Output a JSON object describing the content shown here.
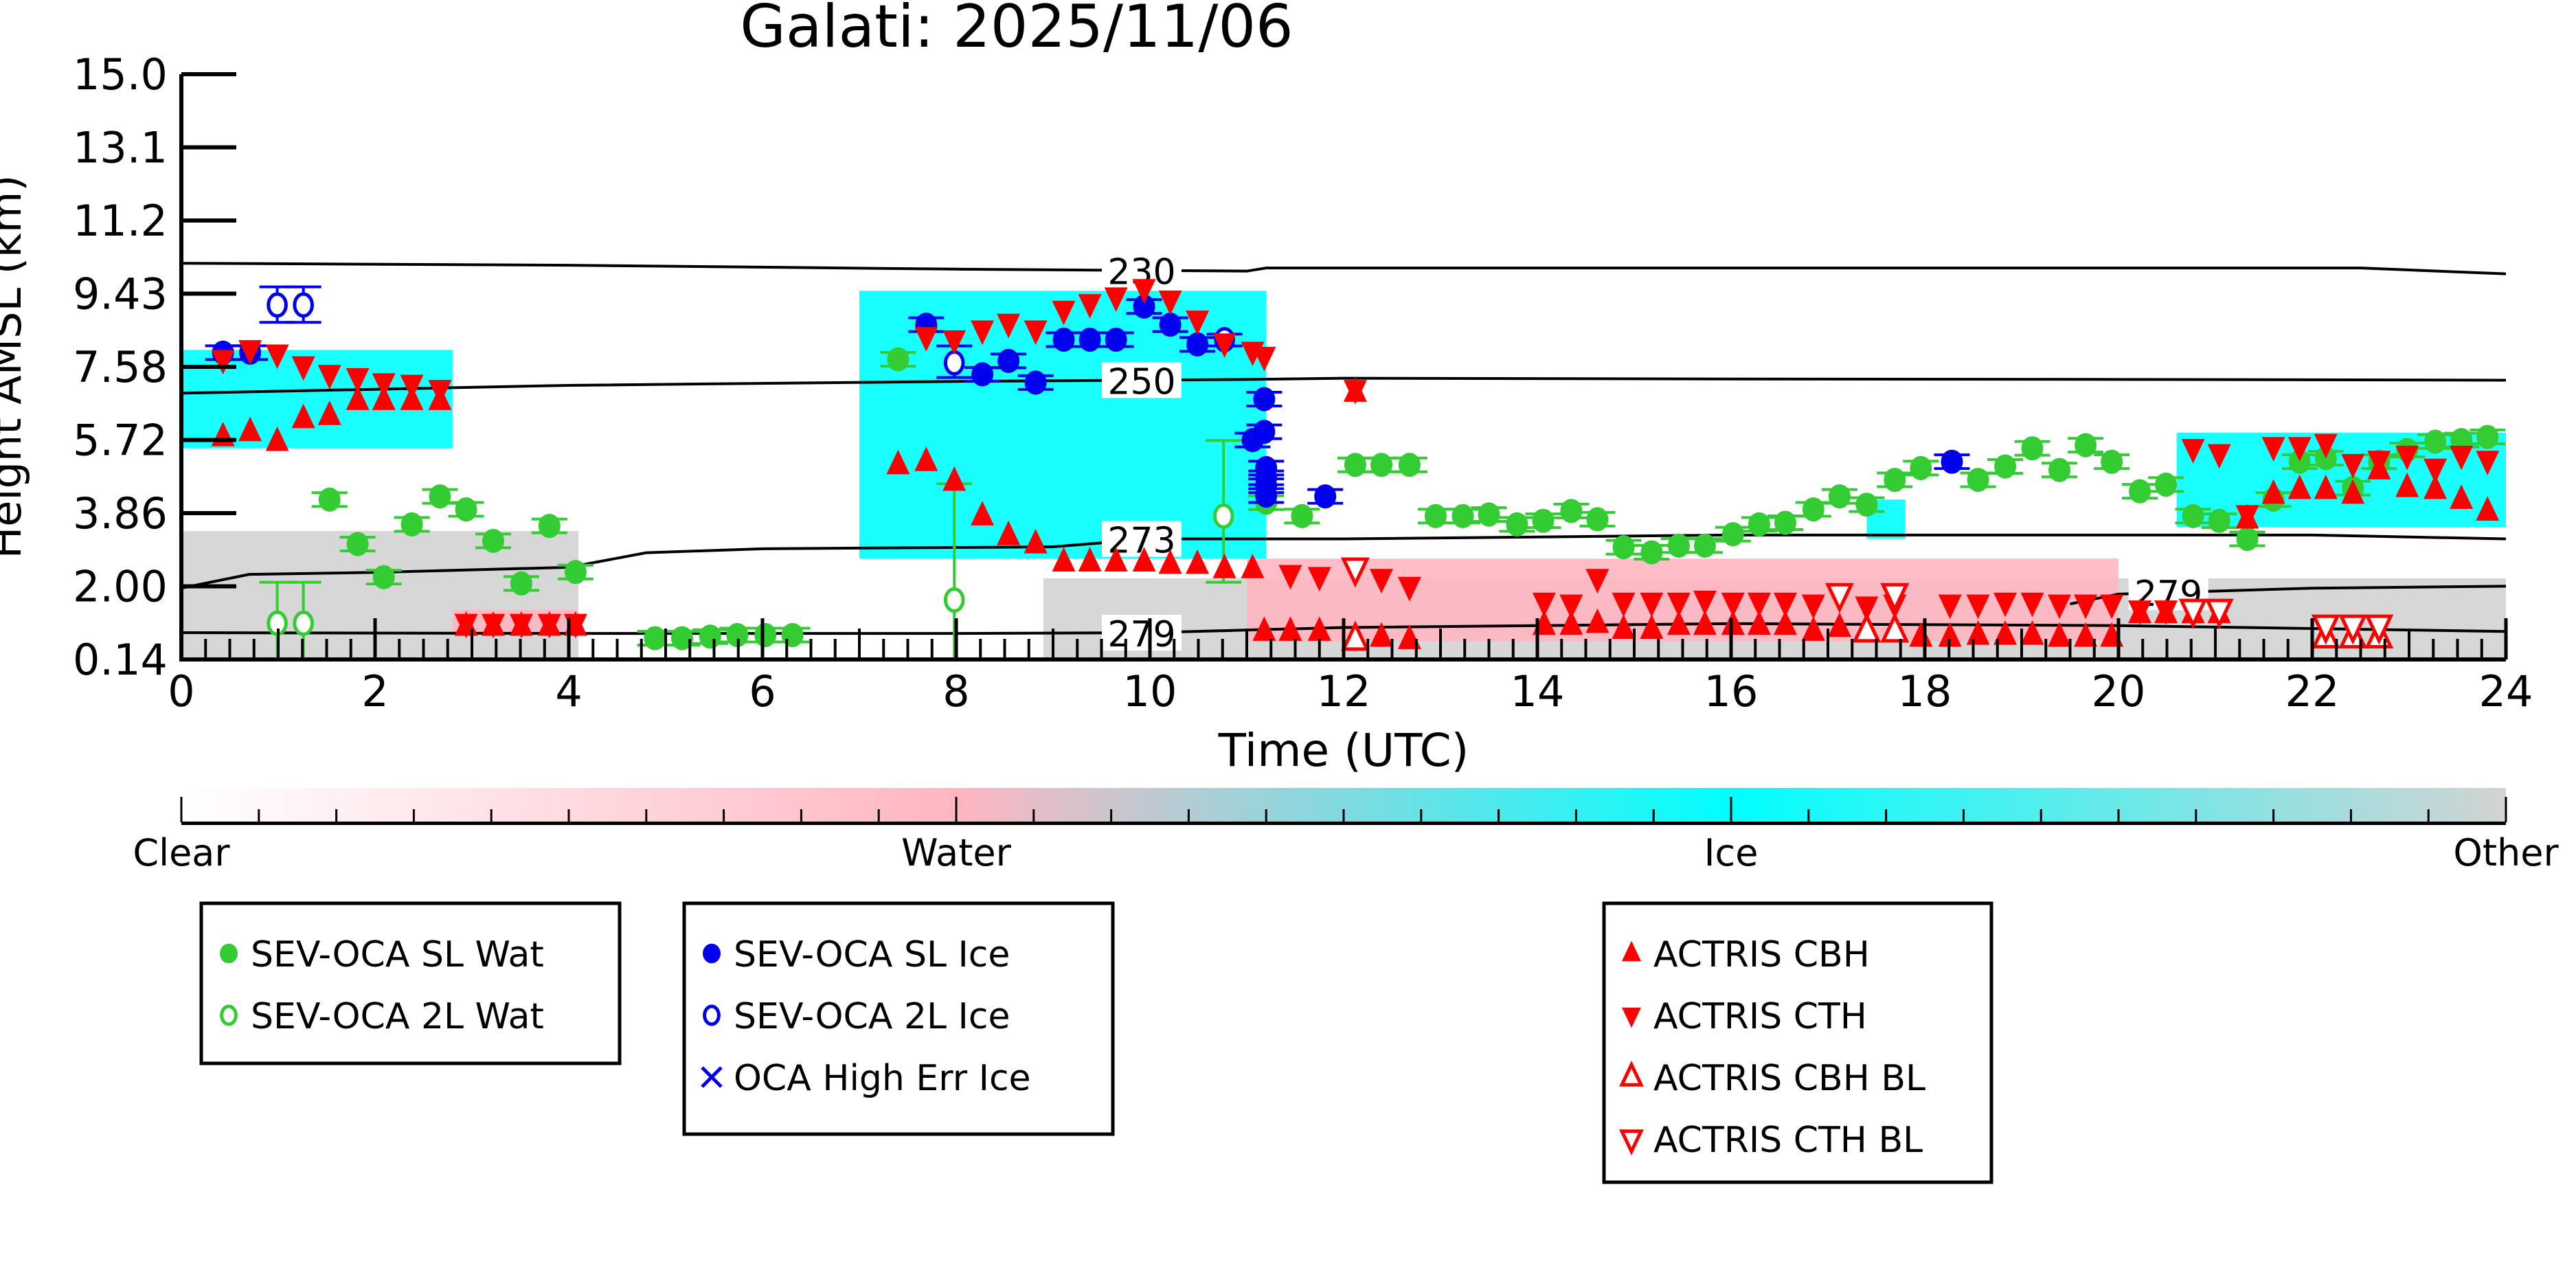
{
  "chart_data": {
    "type": "scatter",
    "title": "Galati: 2025/11/06",
    "xlabel": "Time (UTC)",
    "ylabel": "Height AMSL (km)",
    "xlim": [
      0,
      24
    ],
    "ylim": [
      0.14,
      15.0
    ],
    "xticks": [
      "0",
      "2",
      "4",
      "6",
      "8",
      "10",
      "12",
      "14",
      "16",
      "18",
      "20",
      "22",
      "24"
    ],
    "yticks": [
      "0.14",
      "2.00",
      "3.86",
      "5.72",
      "7.58",
      "9.43",
      "11.2",
      "13.1",
      "15.0"
    ],
    "colorbar": {
      "labels": [
        "Clear",
        "Water",
        "Ice",
        "Other"
      ],
      "colors": [
        "#ffffff",
        "#ffb6c1",
        "#00ffff",
        "#d3d3d3"
      ]
    },
    "background_regions": [
      {
        "class": "Ice",
        "t": [
          0,
          2.8
        ],
        "h": [
          5.5,
          8.0
        ]
      },
      {
        "class": "Ice",
        "t": [
          7.0,
          11.2
        ],
        "h": [
          2.7,
          9.5
        ]
      },
      {
        "class": "Ice",
        "t": [
          20.6,
          24
        ],
        "h": [
          3.5,
          5.9
        ]
      },
      {
        "class": "Ice",
        "t": [
          17.4,
          17.8
        ],
        "h": [
          3.2,
          4.2
        ]
      },
      {
        "class": "Water",
        "t": [
          11.0,
          20
        ],
        "h": [
          0.6,
          2.7
        ]
      },
      {
        "class": "Water",
        "t": [
          2.8,
          4.1
        ],
        "h": [
          0.8,
          1.4
        ]
      },
      {
        "class": "Other",
        "t": [
          0,
          4.1
        ],
        "h": [
          0.14,
          3.4
        ]
      },
      {
        "class": "Other",
        "t": [
          8.9,
          24
        ],
        "h": [
          0.14,
          2.2
        ]
      }
    ],
    "contours": [
      {
        "label": "230",
        "t": [
          0,
          4,
          8,
          11,
          11.2,
          16,
          20,
          22.5,
          24
        ],
        "h": [
          10.2,
          10.15,
          10.05,
          10.0,
          10.08,
          10.08,
          10.08,
          10.08,
          9.93
        ]
      },
      {
        "label": "250",
        "t": [
          0,
          4,
          8,
          11,
          12,
          16,
          20,
          24
        ],
        "h": [
          6.9,
          7.1,
          7.2,
          7.25,
          7.28,
          7.26,
          7.25,
          7.23
        ]
      },
      {
        "label": "273",
        "t": [
          0,
          0.7,
          2,
          4,
          4.8,
          6,
          9,
          10,
          12,
          16,
          20,
          22,
          24
        ],
        "h": [
          1.95,
          2.3,
          2.35,
          2.48,
          2.85,
          2.95,
          3.0,
          3.2,
          3.2,
          3.3,
          3.3,
          3.3,
          3.2
        ]
      },
      {
        "label": "279",
        "t": [
          0,
          4,
          8,
          10,
          11.2,
          12,
          16,
          20,
          24
        ],
        "h": [
          0.82,
          0.8,
          0.8,
          0.82,
          0.9,
          0.95,
          1.05,
          1.0,
          0.85
        ]
      },
      {
        "label": "279",
        "t": [
          19.5,
          20,
          22,
          24
        ],
        "h": [
          1.55,
          1.8,
          1.95,
          2.0
        ]
      }
    ],
    "series": [
      {
        "name": "SEV-OCA SL Wat",
        "marker": "filled-circle",
        "color": "#33cc33",
        "t": [
          1.53,
          1.82,
          2.09,
          2.38,
          2.67,
          2.94,
          3.22,
          3.51,
          3.8,
          4.07,
          4.89,
          5.17,
          5.46,
          5.74,
          6.03,
          6.31,
          7.4,
          11.2,
          11.57,
          12.12,
          12.39,
          12.68,
          12.95,
          13.23,
          13.5,
          13.79,
          14.06,
          14.35,
          14.62,
          14.89,
          15.18,
          15.46,
          15.73,
          16.02,
          16.29,
          16.56,
          16.85,
          17.12,
          17.4,
          17.69,
          17.96,
          18.55,
          18.83,
          19.11,
          19.39,
          19.66,
          19.93,
          20.22,
          20.49,
          20.77,
          21.04,
          21.33,
          21.6,
          21.87,
          22.14,
          22.42,
          22.69,
          22.98,
          23.27,
          23.54,
          23.81
        ],
        "h": [
          4.2,
          3.07,
          2.23,
          3.57,
          4.28,
          3.95,
          3.15,
          2.07,
          3.53,
          2.36,
          0.68,
          0.68,
          0.72,
          0.76,
          0.76,
          0.76,
          7.76,
          4.12,
          3.78,
          5.08,
          5.08,
          5.08,
          3.78,
          3.78,
          3.82,
          3.57,
          3.66,
          3.91,
          3.7,
          2.99,
          2.86,
          3.03,
          3.03,
          3.32,
          3.57,
          3.61,
          3.95,
          4.28,
          4.07,
          4.7,
          5.0,
          4.7,
          5.04,
          5.5,
          4.95,
          5.58,
          5.16,
          4.41,
          4.58,
          3.78,
          3.66,
          3.2,
          4.2,
          5.16,
          5.25,
          4.49,
          5.16,
          5.46,
          5.67,
          5.71,
          5.79
        ]
      },
      {
        "name": "SEV-OCA 2L Wat",
        "marker": "open-circle",
        "color": "#33cc33",
        "t": [
          0.99,
          1.26,
          7.98,
          10.76
        ],
        "h": [
          1.06,
          1.06,
          1.65,
          3.78
        ],
        "err_low": [
          0.14,
          0.14,
          0.14,
          2.1
        ],
        "err_high": [
          2.1,
          2.1,
          4.6,
          5.7
        ]
      },
      {
        "name": "SEV-OCA SL Ice",
        "marker": "filled-circle",
        "color": "#0000ee",
        "t": [
          0.43,
          0.71,
          7.69,
          8.27,
          8.54,
          8.82,
          9.11,
          9.38,
          9.65,
          9.94,
          10.21,
          10.49,
          11.18,
          11.18,
          11.06,
          11.2,
          11.2,
          11.2,
          11.2,
          11.81,
          18.28
        ],
        "h": [
          7.93,
          7.93,
          8.64,
          7.38,
          7.72,
          7.17,
          8.26,
          8.26,
          8.26,
          9.1,
          8.64,
          8.14,
          6.75,
          5.92,
          5.71,
          5.0,
          4.75,
          4.55,
          4.3,
          4.28,
          5.16
        ]
      },
      {
        "name": "SEV-OCA 2L Ice",
        "marker": "open-circle",
        "color": "#0000ee",
        "t": [
          0.99,
          1.26,
          7.98,
          10.77
        ],
        "h": [
          9.14,
          9.14,
          7.67,
          8.26
        ],
        "err_low": [
          8.7,
          8.7,
          7.3,
          8.1
        ],
        "err_high": [
          9.6,
          9.6,
          8.1,
          8.4
        ]
      },
      {
        "name": "OCA High Err Ice",
        "marker": "x",
        "color": "#0000ee",
        "t": [],
        "h": []
      },
      {
        "name": "ACTRIS CBH",
        "marker": "filled-triangle-up",
        "color": "#ff0000",
        "t": [
          0.43,
          0.71,
          0.99,
          1.26,
          1.53,
          1.82,
          2.09,
          2.38,
          2.67,
          2.94,
          3.22,
          3.51,
          3.8,
          4.07,
          7.4,
          7.69,
          7.98,
          8.27,
          8.54,
          8.82,
          9.11,
          9.38,
          9.65,
          9.94,
          10.21,
          10.49,
          10.77,
          11.06,
          11.18,
          11.45,
          11.75,
          12.12,
          12.39,
          12.68,
          14.07,
          14.35,
          14.62,
          14.89,
          15.18,
          15.46,
          15.73,
          16.02,
          16.29,
          16.56,
          16.85,
          17.12,
          17.96,
          18.26,
          18.55,
          18.83,
          19.11,
          19.39,
          19.66,
          19.93,
          20.22,
          20.49,
          20.77,
          21.04,
          21.33,
          21.6,
          21.87,
          22.14,
          22.42,
          22.69,
          22.98,
          23.27,
          23.54,
          23.81
        ],
        "h": [
          5.79,
          5.92,
          5.67,
          6.25,
          6.33,
          6.71,
          6.71,
          6.71,
          6.71,
          0.98,
          0.98,
          0.98,
          0.98,
          0.98,
          5.08,
          5.16,
          4.66,
          3.78,
          3.28,
          3.07,
          2.61,
          2.61,
          2.61,
          2.61,
          2.55,
          2.55,
          2.44,
          2.44,
          0.85,
          0.85,
          0.85,
          6.92,
          0.7,
          0.64,
          1.0,
          1.0,
          1.05,
          0.9,
          0.9,
          1.0,
          1.0,
          1.0,
          1.0,
          1.0,
          0.85,
          0.95,
          0.7,
          0.7,
          0.75,
          0.75,
          0.75,
          0.7,
          0.7,
          0.7,
          1.3,
          1.3,
          1.3,
          1.3,
          3.7,
          4.33,
          4.45,
          4.45,
          4.33,
          4.95,
          4.5,
          4.45,
          4.2,
          3.9
        ]
      },
      {
        "name": "ACTRIS CTH",
        "marker": "filled-triangle-down",
        "color": "#ff0000",
        "t": [
          0.43,
          0.71,
          0.99,
          1.26,
          1.53,
          1.82,
          2.09,
          2.38,
          2.67,
          2.94,
          3.22,
          3.51,
          3.8,
          4.07,
          7.69,
          7.98,
          8.27,
          8.54,
          8.82,
          9.11,
          9.38,
          9.65,
          9.94,
          10.21,
          10.49,
          10.77,
          11.06,
          11.18,
          11.45,
          11.75,
          12.12,
          12.39,
          12.68,
          14.07,
          14.35,
          14.62,
          14.89,
          15.18,
          15.46,
          15.73,
          16.02,
          16.29,
          16.56,
          16.85,
          17.4,
          17.69,
          18.26,
          18.55,
          18.83,
          19.11,
          19.39,
          19.66,
          19.93,
          20.22,
          20.49,
          20.77,
          21.04,
          21.33,
          21.6,
          21.87,
          22.14,
          22.42,
          22.69,
          22.98,
          23.27,
          23.54,
          23.81
        ],
        "h": [
          7.76,
          8.01,
          7.9,
          7.6,
          7.38,
          7.3,
          7.17,
          7.13,
          7.0,
          1.06,
          1.06,
          1.06,
          1.06,
          1.06,
          8.34,
          8.26,
          8.51,
          8.68,
          8.51,
          9.01,
          9.18,
          9.35,
          9.56,
          9.27,
          8.76,
          8.18,
          7.97,
          7.84,
          2.3,
          2.25,
          7.0,
          2.2,
          2.0,
          1.6,
          1.55,
          2.2,
          1.6,
          1.6,
          1.6,
          1.65,
          1.6,
          1.6,
          1.6,
          1.55,
          1.5,
          1.55,
          1.55,
          1.55,
          1.6,
          1.6,
          1.55,
          1.55,
          1.55,
          1.4,
          1.4,
          5.5,
          5.37,
          3.82,
          5.55,
          5.55,
          5.63,
          5.12,
          5.2,
          5.33,
          5.0,
          5.33,
          5.2
        ]
      },
      {
        "name": "ACTRIS CBH BL",
        "marker": "open-triangle-up",
        "color": "#ff0000",
        "t": [
          12.12,
          17.4,
          17.69,
          22.14,
          22.42,
          22.69
        ],
        "h": [
          0.64,
          0.85,
          0.85,
          0.7,
          0.7,
          0.7
        ]
      },
      {
        "name": "ACTRIS CTH BL",
        "marker": "open-triangle-down",
        "color": "#ff0000",
        "t": [
          12.12,
          17.12,
          17.69,
          20.77,
          21.04,
          22.14,
          22.42,
          22.69
        ],
        "h": [
          2.45,
          1.8,
          1.8,
          1.4,
          1.4,
          1.0,
          1.0,
          1.0
        ]
      }
    ],
    "legend_groups": [
      [
        "SEV-OCA SL Wat",
        "SEV-OCA 2L Wat"
      ],
      [
        "SEV-OCA SL Ice",
        "SEV-OCA 2L Ice",
        "OCA High Err Ice"
      ],
      [
        "ACTRIS CBH",
        "ACTRIS CTH",
        "ACTRIS CBH BL",
        "ACTRIS CTH BL"
      ]
    ]
  }
}
